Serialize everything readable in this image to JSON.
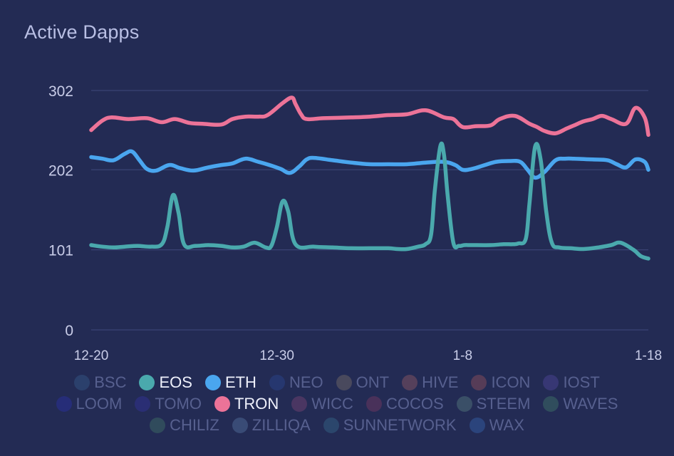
{
  "chart_data": {
    "type": "line",
    "title": "Active Dapps",
    "y_ticks": [
      "0",
      "101",
      "202",
      "302"
    ],
    "ylim": [
      0,
      302
    ],
    "x_ticks": [
      {
        "label": "12-20",
        "day": 0
      },
      {
        "label": "12-30",
        "day": 10
      },
      {
        "label": "1-8",
        "day": 20
      },
      {
        "label": "1-18",
        "day": 30
      }
    ],
    "x_day_range": [
      0,
      30
    ],
    "grid": true,
    "series": [
      {
        "name": "TRON",
        "color": "#ec7398",
        "x": [
          0,
          0.6,
          1.1,
          2,
          3,
          3.8,
          4.5,
          5.3,
          6,
          7,
          7.6,
          8.3,
          9,
          9.5,
          10.3,
          10.8,
          11,
          11.3,
          11.6,
          12.5,
          14,
          15,
          16,
          17,
          18,
          19,
          19.5,
          20,
          20.7,
          21.5,
          22,
          22.8,
          23.6,
          24,
          24.4,
          25,
          25.6,
          26,
          26.5,
          27,
          27.5,
          28,
          28.8,
          29.3,
          29.8,
          30
        ],
        "y": [
          252,
          264,
          268,
          266,
          267,
          262,
          266,
          261,
          260,
          259,
          266,
          269,
          269,
          271,
          286,
          293,
          285,
          272,
          266,
          267,
          268,
          269,
          271,
          272,
          277,
          268,
          266,
          256,
          257,
          258,
          266,
          270,
          260,
          256,
          251,
          248,
          254,
          258,
          263,
          266,
          270,
          266,
          260,
          280,
          268,
          246
        ]
      },
      {
        "name": "ETH",
        "color": "#4aa6ef",
        "x": [
          0,
          0.6,
          1.2,
          1.8,
          2.2,
          2.6,
          3,
          3.5,
          4.2,
          4.8,
          5.5,
          6.3,
          7,
          7.6,
          8.3,
          9,
          9.6,
          10.2,
          10.7,
          11.2,
          11.6,
          12,
          13,
          14,
          15,
          16,
          17,
          18,
          19,
          19.6,
          20,
          20.5,
          21.2,
          21.8,
          22.5,
          23.1,
          23.5,
          23.9,
          24.4,
          25,
          25.5,
          26,
          27,
          27.8,
          28.3,
          28.8,
          29.3,
          29.8,
          30
        ],
        "y": [
          218,
          216,
          214,
          222,
          225,
          214,
          203,
          201,
          208,
          204,
          201,
          205,
          208,
          210,
          216,
          212,
          208,
          203,
          198,
          206,
          215,
          217,
          214,
          211,
          209,
          209,
          209,
          211,
          212,
          208,
          202,
          203,
          208,
          212,
          213,
          212,
          202,
          192,
          199,
          214,
          216,
          216,
          215,
          214,
          209,
          205,
          215,
          212,
          202
        ]
      },
      {
        "name": "EOS",
        "color": "#4aa9ad",
        "x": [
          0,
          0.6,
          1.2,
          1.8,
          2.5,
          3.2,
          3.8,
          4.1,
          4.4,
          4.7,
          5,
          5.6,
          6.3,
          7,
          7.6,
          8.2,
          8.8,
          9.4,
          9.7,
          10,
          10.3,
          10.6,
          11,
          12,
          13,
          14,
          15,
          16,
          16.5,
          17,
          17.6,
          18,
          18.3,
          18.5,
          18.8,
          19,
          19.2,
          19.5,
          19.8,
          20.1,
          20.5,
          21.5,
          22.2,
          22.7,
          23,
          23.4,
          23.6,
          23.9,
          24.2,
          24.5,
          24.8,
          25.2,
          25.8,
          26.5,
          27.3,
          28,
          28.5,
          29.2,
          29.6,
          30
        ],
        "y": [
          107,
          105,
          104,
          105,
          106,
          105,
          108,
          130,
          170,
          148,
          108,
          106,
          107,
          106,
          104,
          105,
          110,
          104,
          106,
          130,
          162,
          150,
          108,
          105,
          104,
          103,
          103,
          103,
          102,
          102,
          105,
          108,
          120,
          175,
          232,
          220,
          168,
          110,
          106,
          107,
          107,
          107,
          108,
          108,
          109,
          115,
          160,
          231,
          215,
          150,
          110,
          104,
          103,
          102,
          104,
          107,
          110,
          101,
          93,
          90
        ]
      }
    ]
  },
  "legend": {
    "rows": [
      [
        {
          "label": "BSC",
          "color": "#3f6ea0",
          "active": false
        },
        {
          "label": "EOS",
          "color": "#4aa9ad",
          "active": true
        },
        {
          "label": "ETH",
          "color": "#4aa6ef",
          "active": true
        },
        {
          "label": "NEO",
          "color": "#2f52a8",
          "active": false
        },
        {
          "label": "ONT",
          "color": "#9a8870",
          "active": false
        },
        {
          "label": "HIVE",
          "color": "#c26d6a",
          "active": false
        },
        {
          "label": "ICON",
          "color": "#c35f5c",
          "active": false
        },
        {
          "label": "IOST",
          "color": "#6252b8",
          "active": false
        }
      ],
      [
        {
          "label": "LOOM",
          "color": "#3032c4",
          "active": false
        },
        {
          "label": "TOMO",
          "color": "#3a36b6",
          "active": false
        },
        {
          "label": "TRON",
          "color": "#ec7398",
          "active": true
        },
        {
          "label": "WICC",
          "color": "#a04e7e",
          "active": false
        },
        {
          "label": "COCOS",
          "color": "#9a3e68",
          "active": false
        },
        {
          "label": "STEEM",
          "color": "#6e9d8e",
          "active": false
        },
        {
          "label": "WAVES",
          "color": "#4f9470",
          "active": false
        }
      ],
      [
        {
          "label": "CHILIZ",
          "color": "#4f8f6c",
          "active": false
        },
        {
          "label": "ZILLIQA",
          "color": "#6b8fbe",
          "active": false
        },
        {
          "label": "SUNNETWORK",
          "color": "#3f7f9f",
          "active": false
        },
        {
          "label": "WAX",
          "color": "#3f7ad0",
          "active": false
        }
      ]
    ]
  }
}
